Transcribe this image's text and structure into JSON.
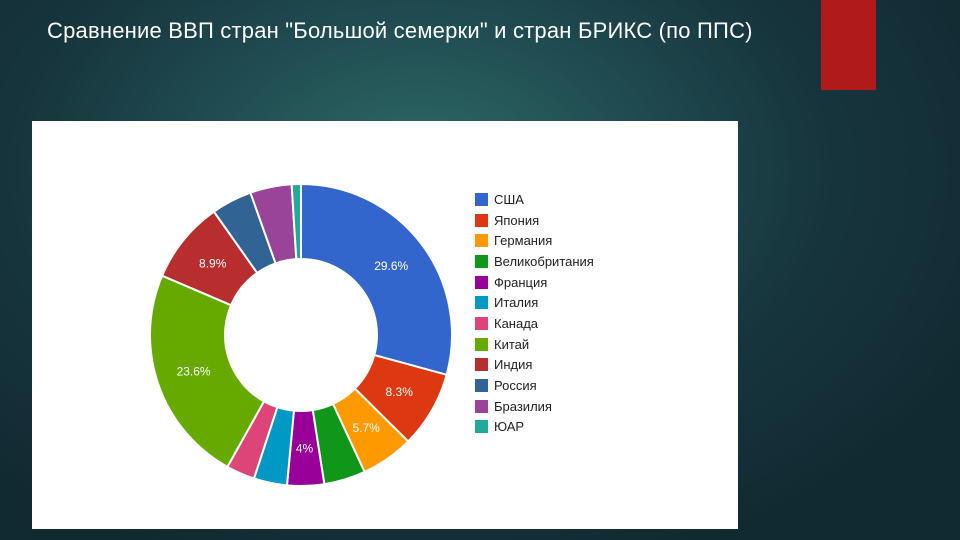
{
  "slide": {
    "title": "Сравнение ВВП стран \"Большой семерки\" и стран БРИКС (по ППС)"
  },
  "colors": {
    "accent_bar": "#b11a1a",
    "panel_bg": "#ffffff"
  },
  "chart_data": {
    "type": "pie",
    "donut": true,
    "title": "",
    "legend_position": "right",
    "categories": [
      "США",
      "Япония",
      "Германия",
      "Великобритания",
      "Франция",
      "Италия",
      "Канада",
      "Китай",
      "Индия",
      "Россия",
      "Бразилия",
      "ЮАР"
    ],
    "values": [
      29.6,
      8.3,
      5.7,
      4.5,
      4.0,
      3.6,
      3.1,
      23.6,
      8.9,
      4.4,
      4.5,
      1.0
    ],
    "value_labels": [
      "29.6%",
      "8.3%",
      "5.7%",
      "",
      "4%",
      "",
      "",
      "23.6%",
      "8.9%",
      "",
      "",
      ""
    ],
    "colors": [
      "#3366cc",
      "#dc3912",
      "#ff9900",
      "#109618",
      "#990099",
      "#0099c6",
      "#dd4477",
      "#66aa00",
      "#b82e2e",
      "#316395",
      "#994499",
      "#22aa99"
    ]
  }
}
